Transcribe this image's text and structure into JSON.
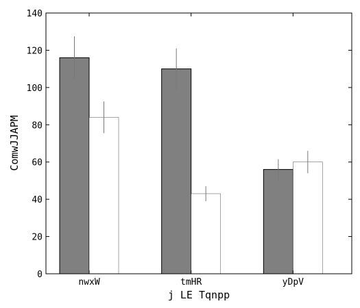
{
  "chart_data": {
    "type": "bar",
    "title": "",
    "xlabel": "j LE Tqnpp",
    "ylabel": "ComwJJAPM",
    "categories": [
      "nwxW",
      "tmHR",
      "yDpV"
    ],
    "ylim": [
      0,
      140
    ],
    "yticks": [
      0,
      20,
      40,
      60,
      80,
      100,
      120,
      140
    ],
    "grid": false,
    "legend": "none",
    "series": [
      {
        "color": "#808080",
        "values": [
          116,
          110,
          56
        ],
        "errors": [
          11.5,
          11,
          5.5
        ]
      },
      {
        "color": "#ffffff",
        "values": [
          84,
          43,
          60
        ],
        "errors": [
          8.5,
          4,
          6
        ]
      }
    ]
  }
}
